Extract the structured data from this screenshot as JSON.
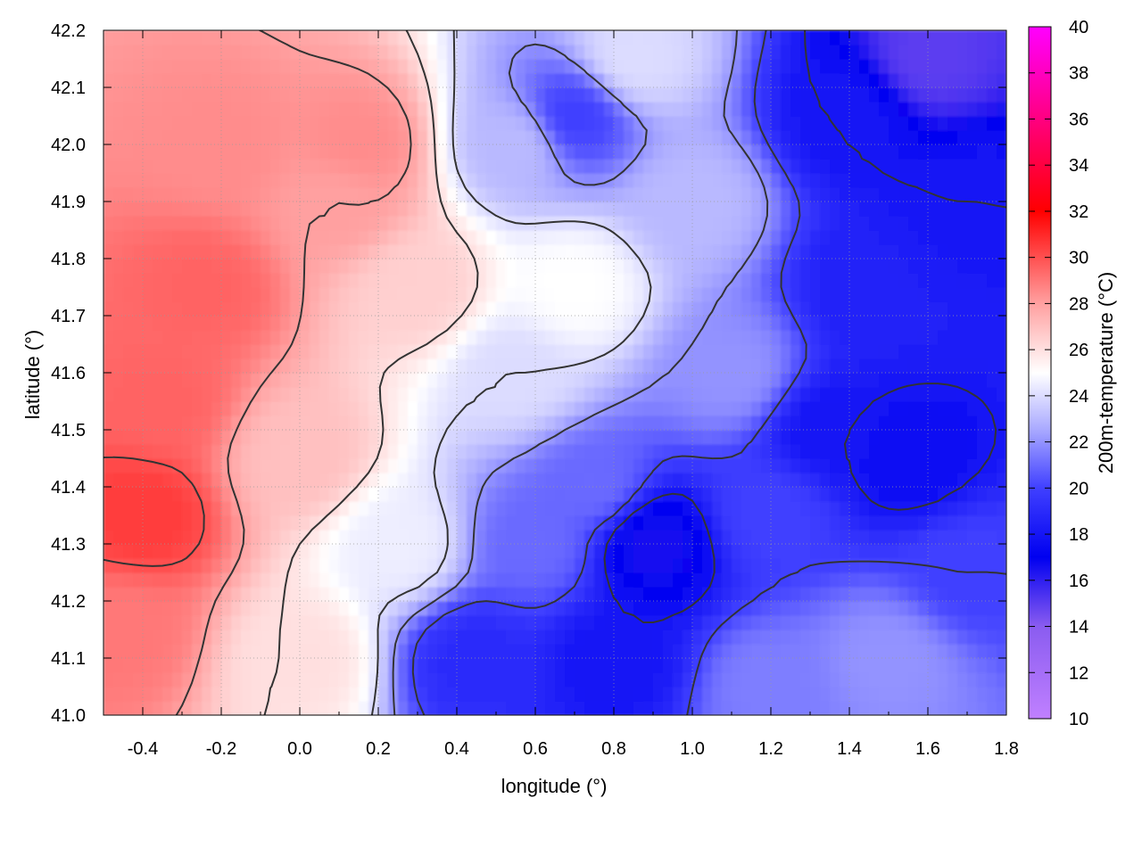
{
  "chart_data": {
    "type": "heatmap",
    "title": "",
    "xlabel": "longitude (°)",
    "ylabel": "latitude (°)",
    "colorbar_label": "200m-temperature (°C)",
    "xlim": [
      -0.5,
      1.8
    ],
    "ylim": [
      41.0,
      42.2
    ],
    "color_range": [
      10,
      40
    ],
    "x_ticks": [
      "-0.4",
      "-0.2",
      "0.0",
      "0.2",
      "0.4",
      "0.6",
      "0.8",
      "1.0",
      "1.2",
      "1.4",
      "1.6",
      "1.8"
    ],
    "x_tick_values": [
      -0.4,
      -0.2,
      0.0,
      0.2,
      0.4,
      0.6,
      0.8,
      1.0,
      1.2,
      1.4,
      1.6,
      1.8
    ],
    "y_ticks": [
      "41.0",
      "41.1",
      "41.2",
      "41.3",
      "41.4",
      "41.5",
      "41.6",
      "41.7",
      "41.8",
      "41.9",
      "42.0",
      "42.1",
      "42.2"
    ],
    "y_tick_values": [
      41.0,
      41.1,
      41.2,
      41.3,
      41.4,
      41.5,
      41.6,
      41.7,
      41.8,
      41.9,
      42.0,
      42.1,
      42.2
    ],
    "colorbar_ticks": [
      "10",
      "12",
      "14",
      "16",
      "18",
      "20",
      "22",
      "24",
      "26",
      "28",
      "30",
      "32",
      "34",
      "36",
      "38",
      "40"
    ],
    "colorbar_tick_values": [
      10,
      12,
      14,
      16,
      18,
      20,
      22,
      24,
      26,
      28,
      30,
      32,
      34,
      36,
      38,
      40
    ],
    "palette": [
      {
        "value": 10,
        "color": "#c080ff"
      },
      {
        "value": 14,
        "color": "#8a5cf0"
      },
      {
        "value": 17,
        "color": "#0000f0"
      },
      {
        "value": 20,
        "color": "#4040ff"
      },
      {
        "value": 22.5,
        "color": "#a8a8ff"
      },
      {
        "value": 25,
        "color": "#ffffff"
      },
      {
        "value": 28,
        "color": "#ffa0a0"
      },
      {
        "value": 32,
        "color": "#ff0000"
      },
      {
        "value": 36,
        "color": "#ff0080"
      },
      {
        "value": 40,
        "color": "#ff00ff"
      }
    ],
    "grid": true,
    "field_samples": [
      {
        "lon": -0.4,
        "lat": 41.35,
        "temp": 30.5
      },
      {
        "lon": -0.45,
        "lat": 41.15,
        "temp": 29
      },
      {
        "lon": -0.25,
        "lat": 41.75,
        "temp": 29.5
      },
      {
        "lon": -0.2,
        "lat": 42.0,
        "temp": 28.5
      },
      {
        "lon": -0.35,
        "lat": 41.55,
        "temp": 29.5
      },
      {
        "lon": 0.1,
        "lat": 41.9,
        "temp": 28
      },
      {
        "lon": 0.15,
        "lat": 42.0,
        "temp": 28.5
      },
      {
        "lon": 0.0,
        "lat": 41.45,
        "temp": 27
      },
      {
        "lon": 0.0,
        "lat": 41.1,
        "temp": 26
      },
      {
        "lon": 0.3,
        "lat": 41.75,
        "temp": 26.5
      },
      {
        "lon": 0.25,
        "lat": 41.3,
        "temp": 24.5
      },
      {
        "lon": 0.55,
        "lat": 41.6,
        "temp": 24
      },
      {
        "lon": 0.7,
        "lat": 41.75,
        "temp": 25
      },
      {
        "lon": 0.45,
        "lat": 41.1,
        "temp": 19
      },
      {
        "lon": 0.6,
        "lat": 41.3,
        "temp": 21
      },
      {
        "lon": 0.75,
        "lat": 41.4,
        "temp": 21
      },
      {
        "lon": 0.9,
        "lat": 41.3,
        "temp": 16.5
      },
      {
        "lon": 0.8,
        "lat": 41.1,
        "temp": 18
      },
      {
        "lon": 0.55,
        "lat": 42.0,
        "temp": 23
      },
      {
        "lon": 0.7,
        "lat": 42.05,
        "temp": 20
      },
      {
        "lon": 0.85,
        "lat": 42.15,
        "temp": 24
      },
      {
        "lon": 1.0,
        "lat": 41.9,
        "temp": 23
      },
      {
        "lon": 1.1,
        "lat": 41.6,
        "temp": 22
      },
      {
        "lon": 1.2,
        "lat": 41.35,
        "temp": 20
      },
      {
        "lon": 1.35,
        "lat": 41.5,
        "temp": 18
      },
      {
        "lon": 1.45,
        "lat": 41.75,
        "temp": 18.5
      },
      {
        "lon": 1.55,
        "lat": 41.45,
        "temp": 17.5
      },
      {
        "lon": 1.4,
        "lat": 42.05,
        "temp": 18
      },
      {
        "lon": 1.6,
        "lat": 42.15,
        "temp": 15
      },
      {
        "lon": 1.7,
        "lat": 41.9,
        "temp": 18
      },
      {
        "lon": 1.5,
        "lat": 41.1,
        "temp": 22
      },
      {
        "lon": 1.2,
        "lat": 41.05,
        "temp": 21.5
      },
      {
        "lon": 1.7,
        "lat": 41.25,
        "temp": 20
      }
    ]
  }
}
